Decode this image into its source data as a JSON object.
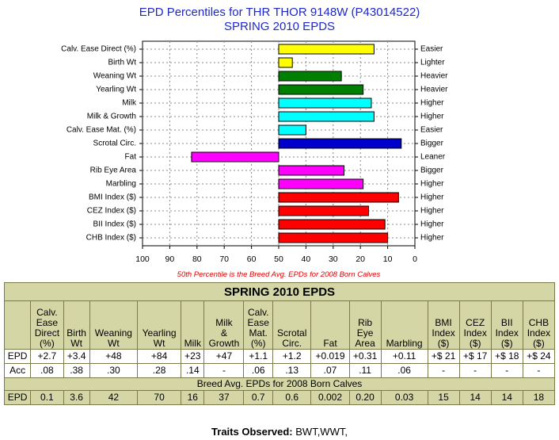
{
  "chart_data": {
    "type": "bar",
    "title": "EPD Percentiles for THR THOR 9148W (P43014522)",
    "subtitle": "SPRING 2010 EPDS",
    "note": "50th Percentile is the Breed Avg. EPDs for 2008 Born Calves",
    "xlim": [
      100,
      0
    ],
    "xticks": [
      100,
      90,
      80,
      70,
      60,
      50,
      40,
      30,
      20,
      10,
      0
    ],
    "baseline": 50,
    "grid": true,
    "categories": [
      "Calv. Ease Direct (%)",
      "Birth Wt",
      "Weaning Wt",
      "Yearling Wt",
      "Milk",
      "Milk & Growth",
      "Calv. Ease Mat. (%)",
      "Scrotal Circ.",
      "Fat",
      "Rib Eye Area",
      "Marbling",
      "BMI Index ($)",
      "CEZ Index ($)",
      "BII Index ($)",
      "CHB Index ($)"
    ],
    "right_labels": [
      "Easier",
      "Lighter",
      "Heavier",
      "Heavier",
      "Higher",
      "Higher",
      "Easier",
      "Bigger",
      "Leaner",
      "Bigger",
      "Higher",
      "Higher",
      "Higher",
      "Higher",
      "Higher"
    ],
    "values": [
      15,
      45,
      27,
      19,
      16,
      15,
      40,
      5,
      82,
      26,
      19,
      6,
      17,
      11,
      10
    ],
    "colors": [
      "#ffff00",
      "#ffff00",
      "#008000",
      "#008000",
      "#00ffff",
      "#00ffff",
      "#00ffff",
      "#0000cd",
      "#ff00ff",
      "#ff00ff",
      "#ff00ff",
      "#ff0000",
      "#ff0000",
      "#ff0000",
      "#ff0000"
    ]
  },
  "table": {
    "title": "SPRING 2010 EPDS",
    "headers": [
      [
        "Calv.",
        "Ease",
        "Direct",
        "(%)"
      ],
      [
        "Birth",
        "Wt"
      ],
      [
        "Weaning",
        "Wt"
      ],
      [
        "Yearling",
        "Wt"
      ],
      [
        "Milk"
      ],
      [
        "Milk",
        "&",
        "Growth"
      ],
      [
        "Calv.",
        "Ease",
        "Mat.",
        "(%)"
      ],
      [
        "Scrotal",
        "Circ."
      ],
      [
        "Fat"
      ],
      [
        "Rib",
        "Eye",
        "Area"
      ],
      [
        "Marbling"
      ],
      [
        "BMI",
        "Index",
        "($)"
      ],
      [
        "CEZ",
        "Index",
        "($)"
      ],
      [
        "BII",
        "Index",
        "($)"
      ],
      [
        "CHB",
        "Index",
        "($)"
      ]
    ],
    "epd_label": "EPD",
    "acc_label": "Acc",
    "epd": [
      "+2.7",
      "+3.4",
      "+48",
      "+84",
      "+23",
      "+47",
      "+1.1",
      "+1.2",
      "+0.019",
      "+0.31",
      "+0.11",
      "+$ 21",
      "+$ 17",
      "+$ 18",
      "+$ 24"
    ],
    "acc": [
      ".08",
      ".38",
      ".30",
      ".28",
      ".14",
      "-",
      ".06",
      ".13",
      ".07",
      ".11",
      ".06",
      "-",
      "-",
      "-",
      "-"
    ],
    "breed_title": "Breed Avg. EPDs for 2008 Born Calves",
    "breed_epd": [
      "0.1",
      "3.6",
      "42",
      "70",
      "16",
      "37",
      "0.7",
      "0.6",
      "0.002",
      "0.20",
      "0.03",
      "15",
      "14",
      "14",
      "18"
    ]
  },
  "traits": {
    "label": "Traits Observed:",
    "value": " BWT,WWT,"
  }
}
